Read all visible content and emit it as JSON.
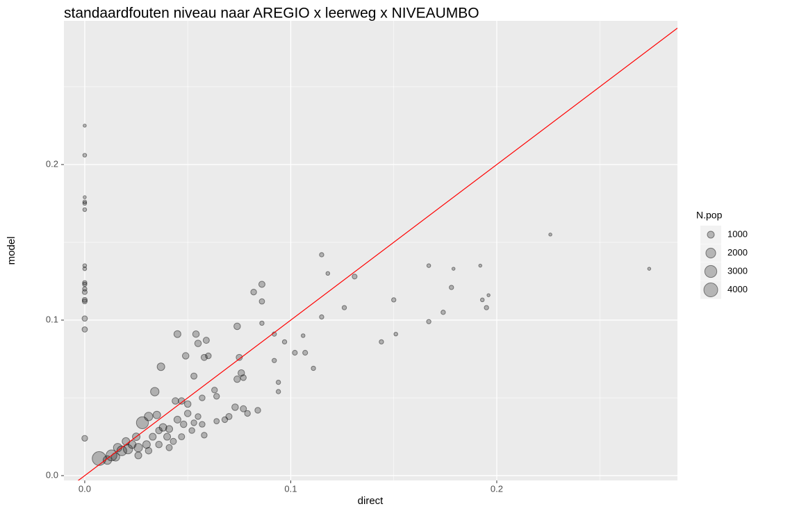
{
  "chart_data": {
    "type": "scatter",
    "title": "standaardfouten niveau naar AREGIO x leerweg x NIVEAUMBO",
    "x_label": "direct",
    "y_label": "model",
    "xlim": [
      -0.0101,
      0.2877
    ],
    "ylim": [
      -0.0031,
      0.2924
    ],
    "xticks": [
      {
        "value": 0,
        "label": "0.0"
      },
      0.1,
      0.2
    ],
    "yticks": [
      {
        "value": 0,
        "label": "0.0"
      },
      0.1,
      0.2
    ],
    "x_minor_grid": [
      0.05,
      0.15,
      0.25
    ],
    "y_minor_grid": [
      0.05,
      0.15,
      0.25
    ],
    "grid": true,
    "point_color": "#000000",
    "abline": {
      "intercept": 0,
      "slope": 1,
      "color": "#ff0000"
    },
    "size_legend": {
      "title": "N.pop",
      "values": [
        1000,
        2000,
        3000,
        4000
      ]
    },
    "x": [
      0,
      0,
      0,
      0,
      0,
      0,
      0,
      0,
      0,
      0,
      0,
      0,
      0,
      0,
      0,
      0,
      0,
      0.115,
      0.118,
      0.131,
      0.167,
      0.179,
      0.192,
      0.226,
      0.274,
      0.178,
      0.15,
      0.196,
      0.193,
      0.195,
      0.174,
      0.167,
      0.126,
      0.115,
      0.144,
      0.151,
      0.106,
      0.102,
      0.107,
      0.111,
      0.086,
      0.082,
      0.086,
      0.086,
      0.092,
      0.097,
      0.092,
      0.094,
      0.094,
      0.045,
      0.054,
      0.055,
      0.059,
      0.049,
      0.058,
      0.06,
      0.037,
      0.074,
      0.075,
      0.076,
      0.077,
      0.074,
      0.053,
      0.063,
      0.034,
      0.044,
      0.047,
      0.05,
      0.057,
      0.064,
      0.073,
      0.077,
      0.079,
      0.084,
      0.07,
      0.068,
      0.064,
      0.058,
      0.053,
      0.007,
      0.013,
      0.018,
      0.021,
      0.026,
      0.028,
      0.031,
      0.035,
      0.038,
      0.041,
      0.045,
      0.048,
      0.05,
      0.04,
      0.033,
      0.03,
      0.025,
      0.023,
      0.016,
      0.011,
      0.015,
      0.02,
      0.036,
      0.043,
      0.047,
      0.052,
      0.055,
      0.057,
      0.036,
      0.031,
      0.026,
      0.041
    ],
    "y": [
      0.225,
      0.206,
      0.179,
      0.176,
      0.175,
      0.171,
      0.135,
      0.133,
      0.124,
      0.123,
      0.12,
      0.118,
      0.113,
      0.112,
      0.101,
      0.094,
      0.024,
      0.142,
      0.13,
      0.128,
      0.135,
      0.133,
      0.135,
      0.155,
      0.133,
      0.121,
      0.113,
      0.116,
      0.113,
      0.108,
      0.105,
      0.099,
      0.108,
      0.102,
      0.086,
      0.091,
      0.09,
      0.079,
      0.079,
      0.069,
      0.112,
      0.118,
      0.123,
      0.098,
      0.091,
      0.086,
      0.074,
      0.06,
      0.054,
      0.091,
      0.091,
      0.085,
      0.087,
      0.077,
      0.076,
      0.077,
      0.07,
      0.096,
      0.076,
      0.066,
      0.063,
      0.062,
      0.064,
      0.055,
      0.054,
      0.048,
      0.048,
      0.046,
      0.05,
      0.051,
      0.044,
      0.043,
      0.04,
      0.042,
      0.038,
      0.036,
      0.035,
      0.026,
      0.034,
      0.011,
      0.013,
      0.016,
      0.017,
      0.018,
      0.034,
      0.038,
      0.039,
      0.031,
      0.03,
      0.036,
      0.033,
      0.04,
      0.025,
      0.025,
      0.02,
      0.025,
      0.02,
      0.018,
      0.01,
      0.012,
      0.022,
      0.02,
      0.022,
      0.025,
      0.029,
      0.038,
      0.033,
      0.029,
      0.016,
      0.013,
      0.018
    ],
    "sizes": [
      200,
      300,
      200,
      300,
      300,
      300,
      300,
      300,
      400,
      400,
      400,
      500,
      500,
      500,
      600,
      600,
      700,
      400,
      300,
      500,
      300,
      200,
      200,
      200,
      200,
      400,
      400,
      200,
      300,
      400,
      400,
      400,
      400,
      400,
      400,
      300,
      300,
      500,
      500,
      400,
      600,
      700,
      800,
      400,
      400,
      400,
      400,
      400,
      400,
      1000,
      900,
      900,
      800,
      900,
      800,
      700,
      1200,
      900,
      800,
      900,
      700,
      900,
      800,
      700,
      1500,
      900,
      900,
      900,
      700,
      700,
      900,
      800,
      700,
      700,
      800,
      700,
      600,
      700,
      700,
      4000,
      2500,
      2000,
      1800,
      1500,
      3000,
      1500,
      1200,
      1200,
      1000,
      1000,
      900,
      900,
      1000,
      1000,
      1200,
      1200,
      1300,
      1500,
      1500,
      1400,
      1200,
      900,
      800,
      800,
      700,
      700,
      700,
      900,
      900,
      1000,
      800
    ]
  }
}
